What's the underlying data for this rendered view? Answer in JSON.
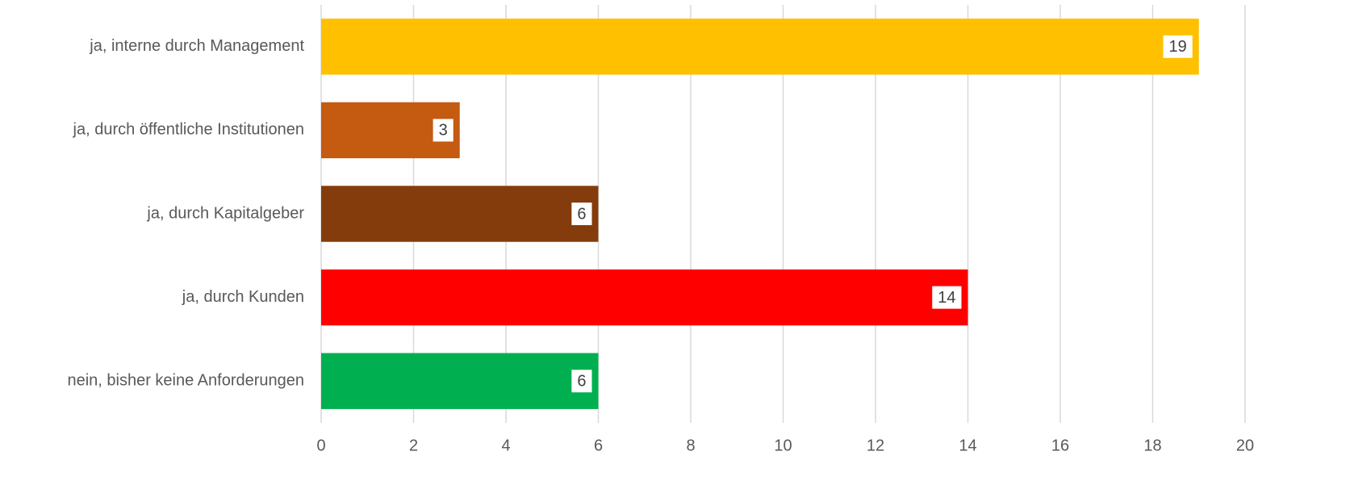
{
  "chart_data": {
    "type": "bar",
    "orientation": "horizontal",
    "categories": [
      "ja, interne durch Management",
      "ja, durch öffentliche Institutionen",
      "ja, durch Kapitalgeber",
      "ja, durch Kunden",
      "nein, bisher keine Anforderungen"
    ],
    "values": [
      19,
      3,
      6,
      14,
      6
    ],
    "colors": [
      "#ffc000",
      "#c55a11",
      "#843c0c",
      "#ff0000",
      "#00b050"
    ],
    "xlim": [
      0,
      20
    ],
    "xticks": [
      0,
      2,
      4,
      6,
      8,
      10,
      12,
      14,
      16,
      18,
      20
    ],
    "grid": true
  }
}
